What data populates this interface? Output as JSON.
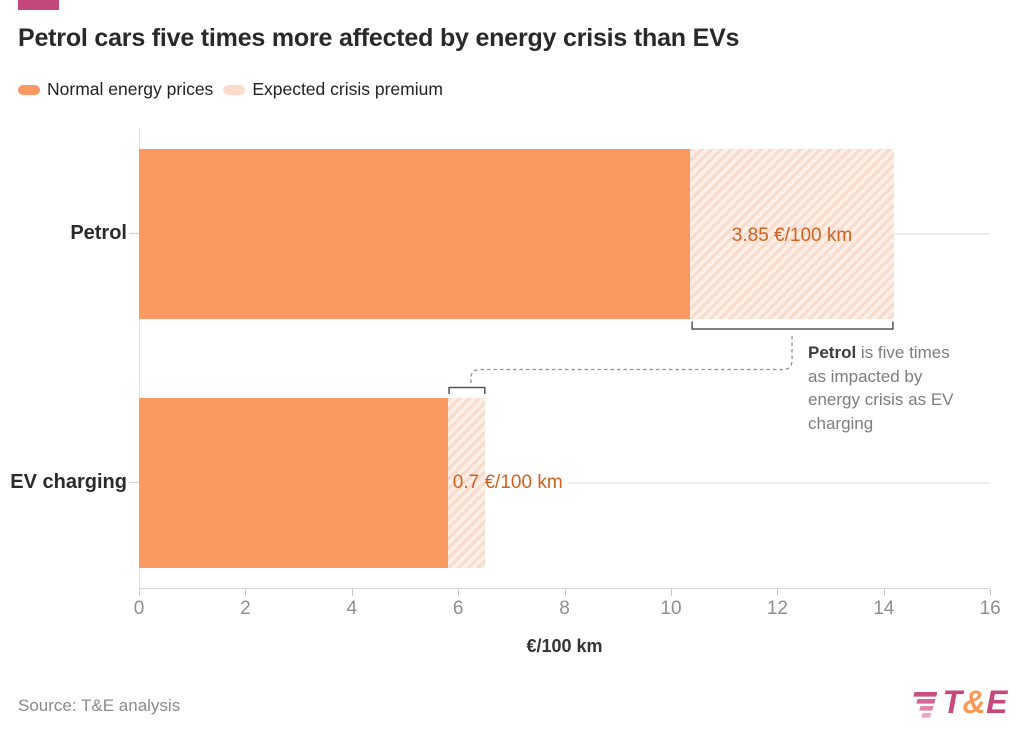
{
  "accent_bar_color": "#c5487c",
  "title": "Petrol cars five times more affected by energy crisis than EVs",
  "legend": {
    "items": [
      {
        "label": "Normal energy prices",
        "color": "#fa9a62"
      },
      {
        "label": "Expected crisis premium",
        "color": "#fcdccb"
      }
    ]
  },
  "chart_data": {
    "type": "bar",
    "orientation": "horizontal",
    "title": "Petrol cars five times more affected by energy crisis than EVs",
    "categories": [
      "Petrol",
      "EV charging"
    ],
    "series": [
      {
        "name": "Normal energy prices",
        "values": [
          10.35,
          5.8
        ],
        "color": "#fa9a62"
      },
      {
        "name": "Expected crisis premium",
        "values": [
          3.85,
          0.7
        ],
        "color": "#fbe2d4",
        "pattern": "diagonal-hatch"
      }
    ],
    "value_labels": [
      "3.85 €/100 km",
      "0.7 €/100 km"
    ],
    "xlabel": "€/100 km",
    "xlim": [
      0,
      16
    ],
    "xticks": [
      0,
      2,
      4,
      6,
      8,
      10,
      12,
      14,
      16
    ],
    "legend_position": "top",
    "grid": "per-category right of bars",
    "annotation": "Petrol is five times as impacted by energy crisis as EV charging"
  },
  "annotation": {
    "bold": "Petrol",
    "line1_rest": " is five times",
    "line2": "as impacted by",
    "line3": "energy crisis as EV",
    "line4": "charging"
  },
  "axis": {
    "title": "€/100 km"
  },
  "footer": {
    "source": "Source: T&E analysis",
    "logo": {
      "t": "T",
      "amp": "&",
      "e": "E",
      "magenta": "#c6487c",
      "orange": "#f59a57"
    }
  }
}
